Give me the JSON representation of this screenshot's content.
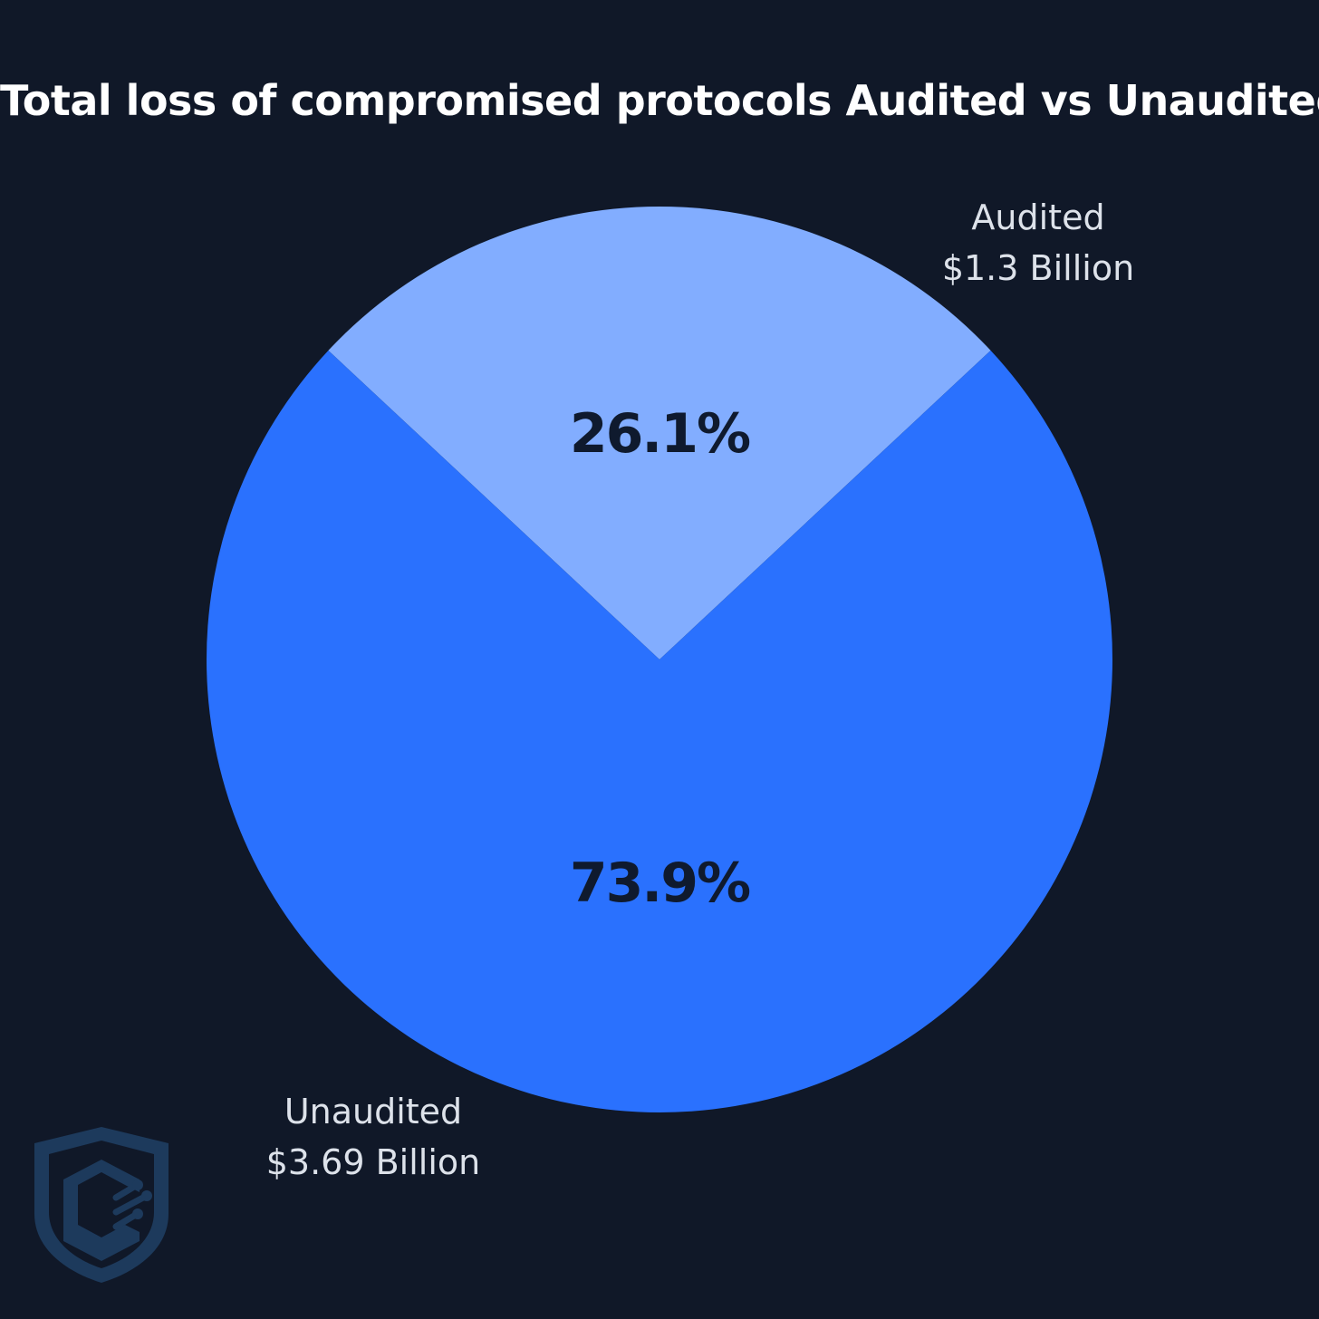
{
  "chart_data": {
    "type": "pie",
    "title": "Total loss of compromised protocols Audited vs Unaudited",
    "slices": [
      {
        "name": "Audited",
        "value_label": "$1.3 Billion",
        "value": 1.3,
        "percent": 26.1,
        "percent_label": "26.1%",
        "color": "#82adff"
      },
      {
        "name": "Unaudited",
        "value_label": "$3.69 Billion",
        "value": 3.69,
        "percent": 73.9,
        "percent_label": "73.9%",
        "color": "#2a71fe"
      }
    ],
    "start_angle_deg": 0,
    "legend": "none"
  },
  "colors": {
    "background": "#101828",
    "title": "#ffffff",
    "outer_label": "#dde2ea",
    "percent_label": "#0f1a2e",
    "logo": "#1d3a5c"
  },
  "logo": {
    "icon": "shield-circuit-logo"
  }
}
